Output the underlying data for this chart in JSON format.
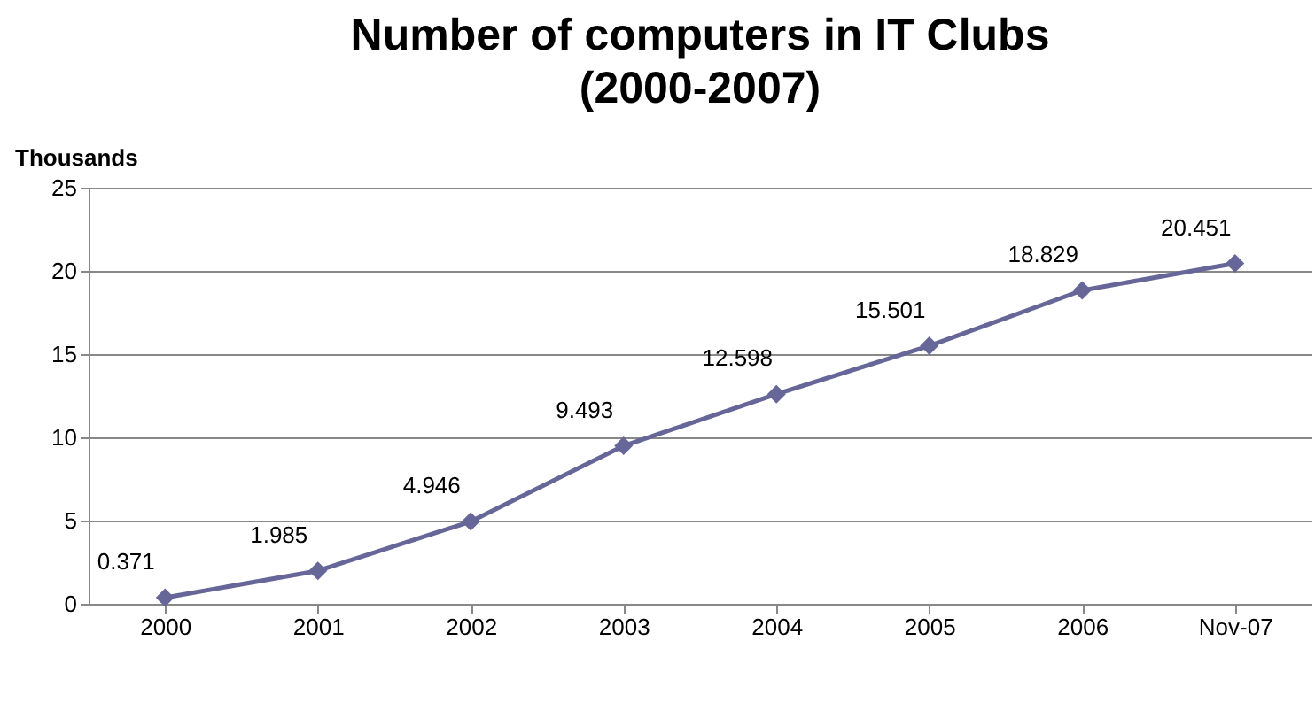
{
  "chart_data": {
    "type": "line",
    "title": "Number of computers in IT Clubs (2000-2007)",
    "ylabel": "Thousands",
    "categories": [
      "2000",
      "2001",
      "2002",
      "2003",
      "2004",
      "2005",
      "2006",
      "Nov-07"
    ],
    "series": [
      {
        "color": "#666699",
        "values": [
          0.371,
          1.985,
          4.946,
          9.493,
          12.598,
          15.501,
          18.829,
          20.451
        ]
      }
    ],
    "ylim": [
      0,
      25
    ],
    "yticks": [
      0,
      5,
      10,
      15,
      20,
      25
    ],
    "grid": "y",
    "marker": "diamond",
    "line_style": "solid",
    "data_labels": true
  }
}
